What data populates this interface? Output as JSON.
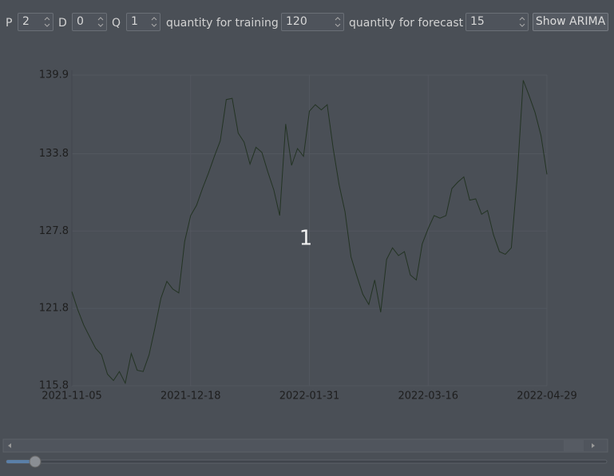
{
  "toolbar": {
    "p_label": "P",
    "p_value": "2",
    "d_label": "D",
    "d_value": "0",
    "q_label": "Q",
    "q_value": "1",
    "training_label": "quantity for training",
    "training_value": "120",
    "forecast_label": "quantity for forecast",
    "forecast_value": "15",
    "button": "Show ARIMA"
  },
  "chart_data": {
    "type": "line",
    "annotation": "1",
    "color": "#233323",
    "grid": true,
    "xlim": [
      0,
      80
    ],
    "xticks": [
      {
        "value": 0,
        "label": "2021-11-05"
      },
      {
        "value": 20,
        "label": "2021-12-18"
      },
      {
        "value": 40,
        "label": "2022-01-31"
      },
      {
        "value": 60,
        "label": "2022-03-16"
      },
      {
        "value": 80,
        "label": "2022-04-29"
      }
    ],
    "ylim": [
      115.8,
      139.9
    ],
    "yticks": [
      115.8,
      121.8,
      127.8,
      133.8,
      139.9
    ],
    "values": [
      123.1,
      121.7,
      120.5,
      119.6,
      118.7,
      118.2,
      116.7,
      116.2,
      116.9,
      116.0,
      118.3,
      117.0,
      116.9,
      118.2,
      120.3,
      122.6,
      123.9,
      123.3,
      123.0,
      127.0,
      129.0,
      129.8,
      131.1,
      132.3,
      133.6,
      134.8,
      138.0,
      138.1,
      135.4,
      134.7,
      133.0,
      134.3,
      133.9,
      132.4,
      131.0,
      129.0,
      136.1,
      132.9,
      134.2,
      133.6,
      137.1,
      137.6,
      137.2,
      137.6,
      134.2,
      131.4,
      129.3,
      125.8,
      124.3,
      122.9,
      122.1,
      124.0,
      121.5,
      125.6,
      126.5,
      125.9,
      126.2,
      124.4,
      124.0,
      126.8,
      128.0,
      129.0,
      128.8,
      129.0,
      131.1,
      131.6,
      132.0,
      130.2,
      130.3,
      129.1,
      129.4,
      127.5,
      126.2,
      126.0,
      126.5,
      132.0,
      139.5,
      138.3,
      137.0,
      135.2,
      132.2
    ]
  }
}
